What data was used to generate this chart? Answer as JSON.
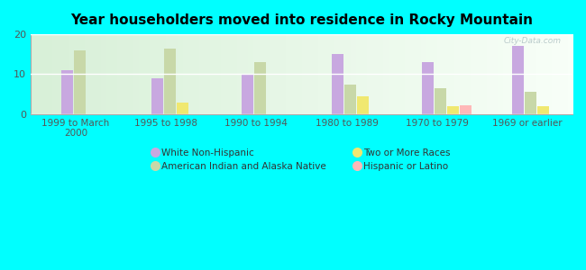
{
  "title": "Year householders moved into residence in Rocky Mountain",
  "categories": [
    "1999 to March\n2000",
    "1995 to 1998",
    "1990 to 1994",
    "1980 to 1989",
    "1970 to 1979",
    "1969 or earlier"
  ],
  "series": {
    "White Non-Hispanic": [
      11,
      9,
      10,
      15,
      13,
      17
    ],
    "American Indian and Alaska Native": [
      16,
      16.5,
      13,
      7.5,
      6.5,
      5.5
    ],
    "Two or More Races": [
      0,
      3,
      0,
      4.5,
      2,
      2
    ],
    "Hispanic or Latino": [
      0,
      0,
      0,
      0,
      2.2,
      0
    ]
  },
  "colors": {
    "White Non-Hispanic": "#c8a8e0",
    "American Indian and Alaska Native": "#c8d8a8",
    "Two or More Races": "#f0e870",
    "Hispanic or Latino": "#ffb8b8"
  },
  "legend_order": [
    "White Non-Hispanic",
    "American Indian and Alaska Native",
    "Two or More Races",
    "Hispanic or Latino"
  ],
  "ylim": [
    0,
    20
  ],
  "yticks": [
    0,
    10,
    20
  ],
  "background_color": "#00ffff",
  "watermark": "City-Data.com"
}
